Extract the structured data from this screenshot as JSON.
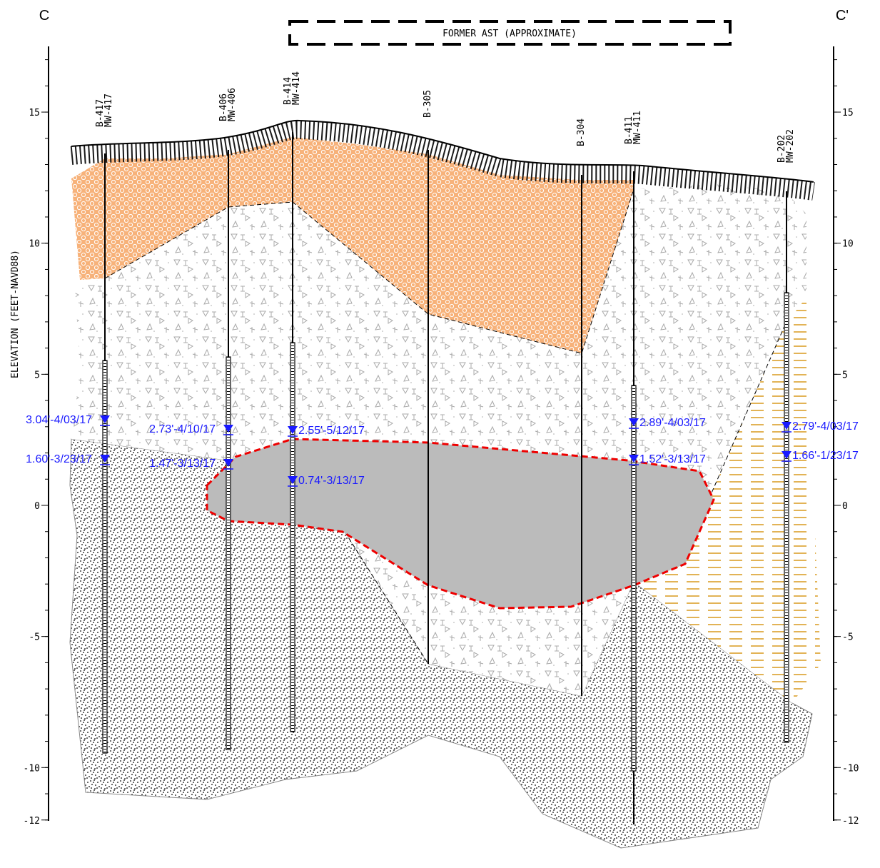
{
  "section": {
    "start": "C",
    "end": "C'"
  },
  "annotation": "FORMER AST (APPROXIMATE)",
  "axis": {
    "label": "ELEVATION (FEET-NAVD88)",
    "ticks": [
      15,
      10,
      5,
      0,
      -5,
      -10,
      -12
    ]
  },
  "borings": [
    {
      "labels": [
        "B-417",
        "MW-417"
      ],
      "water_levels": [
        "3.04'-4/03/17",
        "1.60'-3/23/17"
      ]
    },
    {
      "labels": [
        "B-406",
        "MW-406"
      ],
      "water_levels": [
        "2.73'-4/10/17",
        "1.47'-3/13/17"
      ]
    },
    {
      "labels": [
        "B-414",
        "MW-414"
      ],
      "water_levels": [
        "2.55'-5/12/17",
        "0.74'-3/13/17"
      ]
    },
    {
      "labels": [
        "B-305"
      ],
      "water_levels": []
    },
    {
      "labels": [
        "B-304"
      ],
      "water_levels": []
    },
    {
      "labels": [
        "B-411",
        "MW-411"
      ],
      "water_levels": [
        "2.89'-4/03/17",
        "1.52'-3/13/17"
      ]
    },
    {
      "labels": [
        "B-202",
        "MW-202"
      ],
      "water_levels": [
        "2.79'-4/03/17",
        "1.66'-1/23/17"
      ]
    }
  ]
}
